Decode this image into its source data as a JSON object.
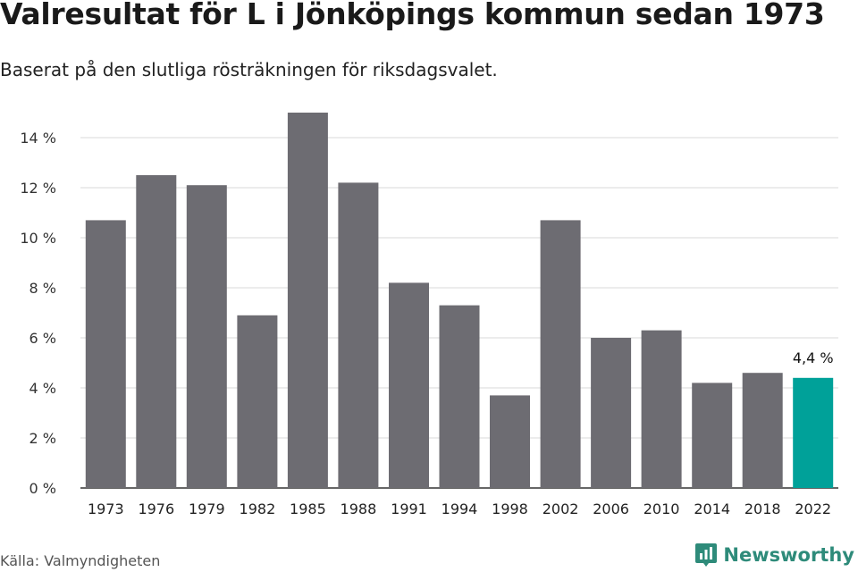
{
  "header": {
    "title": "Valresultat för L i Jönköpings kommun sedan 1973",
    "subtitle": "Baserat på den slutliga rösträkningen för riksdagsvalet."
  },
  "footer": {
    "source": "Källa: Valmyndigheten",
    "brand": "Newsworthy",
    "brand_icon": "newsworthy-logo-icon"
  },
  "colors": {
    "bar": "#6d6c72",
    "highlight": "#00a199",
    "grid": "#d9d9d9",
    "axis": "#333333",
    "brand": "#2e8b7a"
  },
  "chart_data": {
    "type": "bar",
    "categories": [
      "1973",
      "1976",
      "1979",
      "1982",
      "1985",
      "1988",
      "1991",
      "1994",
      "1998",
      "2002",
      "2006",
      "2010",
      "2014",
      "2018",
      "2022"
    ],
    "values": [
      10.7,
      12.5,
      12.1,
      6.9,
      15.0,
      12.2,
      8.2,
      7.3,
      3.7,
      10.7,
      6.0,
      6.3,
      4.2,
      4.6,
      4.4
    ],
    "yticks": [
      "0 %",
      "2 %",
      "4 %",
      "6 %",
      "8 %",
      "10 %",
      "12 %",
      "14 %"
    ],
    "ylim": [
      0,
      16
    ],
    "highlight_index": 14,
    "annotation": "4,4 %",
    "grid": true
  }
}
